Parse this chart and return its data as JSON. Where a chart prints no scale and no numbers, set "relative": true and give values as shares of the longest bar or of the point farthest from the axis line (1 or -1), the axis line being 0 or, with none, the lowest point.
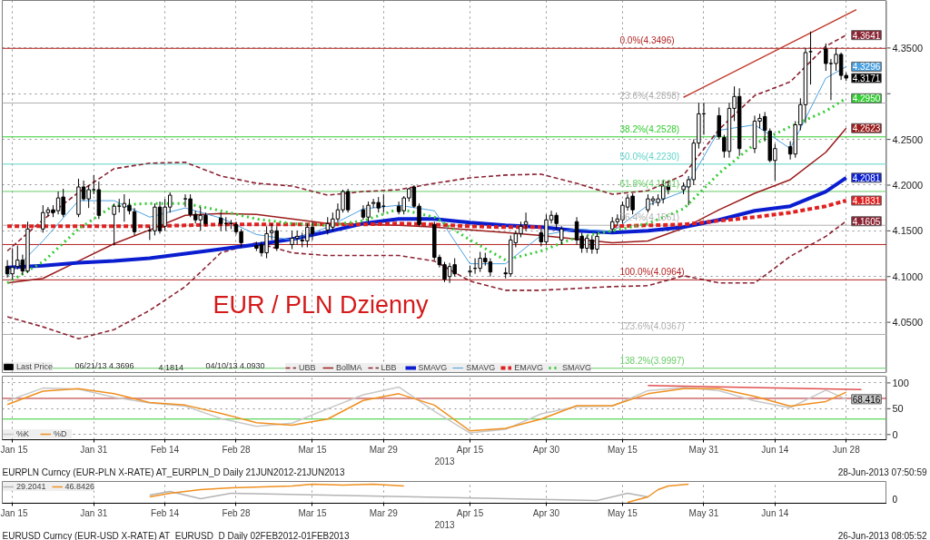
{
  "chart_data": [
    {
      "type": "candlestick",
      "title": "EUR / PLN Dzienny",
      "xlim": [
        "2013-01-13",
        "2013-07-06"
      ],
      "ylim": [
        3.995,
        4.402
      ],
      "xticks": [
        {
          "value": "2013-01-15",
          "label": null
        },
        {
          "value": "2013-01-31",
          "label": null
        },
        {
          "value": "2013-02-14",
          "label": null
        },
        {
          "value": "2013-02-28",
          "label": null
        },
        {
          "value": "2013-03-15",
          "label": null
        },
        {
          "value": "2013-03-29",
          "label": null
        },
        {
          "value": "2013-04-15",
          "label": null
        },
        {
          "value": "2013-04-30",
          "label": null
        },
        {
          "value": "2013-05-15",
          "label": null
        },
        {
          "value": "2013-05-31",
          "label": null
        },
        {
          "value": "2013-06-14",
          "label": null
        },
        {
          "value": "2013-06-28",
          "label": null
        }
      ],
      "yticks": [
        {
          "value": 4.05,
          "label": "4.0500"
        },
        {
          "value": 4.1,
          "label": "4.1000"
        },
        {
          "value": 4.15,
          "label": "4.1500"
        },
        {
          "value": 4.2,
          "label": "4.2000"
        },
        {
          "value": 4.25,
          "label": "4.2500"
        },
        {
          "value": 4.3,
          "label": null
        },
        {
          "value": 4.35,
          "label": "4.3500"
        }
      ],
      "tick_labels": "y",
      "grid": true,
      "legend": "bottom left",
      "annotations": [
        "06/21/13 4.3696",
        "4.1814",
        "04/10/13 4.0930"
      ],
      "ref_lines": [
        {
          "axis": "y",
          "value": 4.3496,
          "label": "0.0%(4.3496)",
          "color": "#b22222"
        },
        {
          "axis": "y",
          "value": 4.2898,
          "label": "23.6%(4.2898)",
          "color": "#b0b0b0"
        },
        {
          "axis": "y",
          "value": 4.2528,
          "label": "38.2%(4.2528)",
          "color": "#33cc33"
        },
        {
          "axis": "y",
          "value": 4.223,
          "label": "50.0%(4.2230)",
          "color": "#5fd3c8"
        },
        {
          "axis": "y",
          "value": 4.1931,
          "label": "61.8%(4.1931)",
          "color": "#66cc66"
        },
        {
          "axis": "y",
          "value": 4.1561,
          "label": "76.4%(4.1561)",
          "color": "#b0b0b0"
        },
        {
          "axis": "y",
          "value": 4.135,
          "color": "#b22222"
        },
        {
          "axis": "y",
          "value": 4.0964,
          "label": "100.0%(4.0964)",
          "color": "#b22222"
        },
        {
          "axis": "y",
          "value": 4.0367,
          "label": "123.6%(4.0367)",
          "color": "#b0b0b0"
        },
        {
          "axis": "y",
          "value": 3.9997,
          "label": "138.2%(3.9997)",
          "color": "#66cc66"
        }
      ],
      "x": [
        "2013-01-14",
        "2013-01-21",
        "2013-01-28",
        "2013-02-04",
        "2013-02-11",
        "2013-02-18",
        "2013-02-25",
        "2013-03-04",
        "2013-03-11",
        "2013-03-18",
        "2013-03-25",
        "2013-04-01",
        "2013-04-08",
        "2013-04-15",
        "2013-04-22",
        "2013-04-29",
        "2013-05-06",
        "2013-05-13",
        "2013-05-20",
        "2013-05-27",
        "2013-06-03",
        "2013-06-10",
        "2013-06-17",
        "2013-06-24",
        "2013-06-28"
      ],
      "series": [
        {
          "name": "Last Price",
          "type": "candlestick",
          "color": "#000000",
          "x": [
            "2013-01-14",
            "2013-01-15",
            "2013-01-16",
            "2013-01-17",
            "2013-01-18",
            "2013-01-21",
            "2013-01-22",
            "2013-01-23",
            "2013-01-24",
            "2013-01-25",
            "2013-01-28",
            "2013-01-29",
            "2013-01-30",
            "2013-01-31",
            "2013-02-01",
            "2013-02-04",
            "2013-02-05",
            "2013-02-06",
            "2013-02-07",
            "2013-02-08",
            "2013-02-11",
            "2013-02-12",
            "2013-02-13",
            "2013-02-14",
            "2013-02-15",
            "2013-02-18",
            "2013-02-19",
            "2013-02-20",
            "2013-02-21",
            "2013-02-22",
            "2013-02-25",
            "2013-02-26",
            "2013-02-27",
            "2013-02-28",
            "2013-03-01",
            "2013-03-04",
            "2013-03-05",
            "2013-03-06",
            "2013-03-07",
            "2013-03-08",
            "2013-03-11",
            "2013-03-12",
            "2013-03-13",
            "2013-03-14",
            "2013-03-15",
            "2013-03-18",
            "2013-03-19",
            "2013-03-20",
            "2013-03-21",
            "2013-03-22",
            "2013-03-25",
            "2013-03-26",
            "2013-03-27",
            "2013-03-28",
            "2013-03-29",
            "2013-04-01",
            "2013-04-02",
            "2013-04-03",
            "2013-04-04",
            "2013-04-05",
            "2013-04-08",
            "2013-04-09",
            "2013-04-10",
            "2013-04-11",
            "2013-04-12",
            "2013-04-15",
            "2013-04-16",
            "2013-04-17",
            "2013-04-18",
            "2013-04-19",
            "2013-04-22",
            "2013-04-23",
            "2013-04-24",
            "2013-04-25",
            "2013-04-26",
            "2013-04-29",
            "2013-04-30",
            "2013-05-01",
            "2013-05-02",
            "2013-05-03",
            "2013-05-06",
            "2013-05-07",
            "2013-05-08",
            "2013-05-09",
            "2013-05-10",
            "2013-05-13",
            "2013-05-14",
            "2013-05-15",
            "2013-05-16",
            "2013-05-17",
            "2013-05-20",
            "2013-05-21",
            "2013-05-22",
            "2013-05-23",
            "2013-05-24",
            "2013-05-27",
            "2013-05-28",
            "2013-05-29",
            "2013-05-30",
            "2013-05-31",
            "2013-06-03",
            "2013-06-04",
            "2013-06-05",
            "2013-06-06",
            "2013-06-07",
            "2013-06-10",
            "2013-06-11",
            "2013-06-12",
            "2013-06-13",
            "2013-06-14",
            "2013-06-17",
            "2013-06-18",
            "2013-06-19",
            "2013-06-20",
            "2013-06-21",
            "2013-06-24",
            "2013-06-25",
            "2013-06-26",
            "2013-06-27",
            "2013-06-28"
          ],
          "ohlc": [
            [
              4.111,
              4.118,
              4.099,
              4.103
            ],
            [
              4.103,
              4.131,
              4.097,
              4.11
            ],
            [
              4.111,
              4.134,
              4.108,
              4.118
            ],
            [
              4.118,
              4.124,
              4.102,
              4.106
            ],
            [
              4.106,
              4.16,
              4.104,
              4.152
            ],
            [
              4.152,
              4.178,
              4.148,
              4.17
            ],
            [
              4.17,
              4.176,
              4.166,
              4.173
            ],
            [
              4.173,
              4.178,
              4.165,
              4.17
            ],
            [
              4.172,
              4.193,
              4.168,
              4.186
            ],
            [
              4.187,
              4.196,
              4.165,
              4.168
            ],
            [
              4.168,
              4.207,
              4.165,
              4.198
            ],
            [
              4.198,
              4.205,
              4.183,
              4.185
            ],
            [
              4.185,
              4.2,
              4.175,
              4.195
            ],
            [
              4.195,
              4.211,
              4.19,
              4.195
            ],
            [
              4.195,
              4.204,
              4.163,
              4.167
            ],
            [
              4.168,
              4.18,
              4.134,
              4.177
            ],
            [
              4.177,
              4.185,
              4.17,
              4.177
            ],
            [
              4.176,
              4.19,
              4.16,
              4.18
            ],
            [
              4.178,
              4.185,
              4.168,
              4.172
            ],
            [
              4.171,
              4.175,
              4.145,
              4.149
            ],
            [
              4.15,
              4.155,
              4.14,
              4.15
            ],
            [
              4.15,
              4.18,
              4.145,
              4.176
            ],
            [
              4.176,
              4.182,
              4.147,
              4.15
            ],
            [
              4.155,
              4.185,
              4.15,
              4.176
            ],
            [
              4.176,
              4.192,
              4.17,
              4.189
            ],
            [
              4.185,
              4.19,
              4.176,
              4.185
            ],
            [
              4.185,
              4.19,
              4.165,
              4.168
            ],
            [
              4.168,
              4.172,
              4.158,
              4.162
            ],
            [
              4.162,
              4.176,
              4.15,
              4.167
            ],
            [
              4.167,
              4.17,
              4.155,
              4.158
            ],
            [
              4.164,
              4.17,
              4.15,
              4.158
            ],
            [
              4.158,
              4.165,
              4.15,
              4.158
            ],
            [
              4.158,
              4.162,
              4.152,
              4.158
            ],
            [
              4.157,
              4.16,
              4.146,
              4.149
            ],
            [
              4.149,
              4.152,
              4.132,
              4.137
            ],
            [
              4.134,
              4.138,
              4.128,
              4.131
            ],
            [
              4.135,
              4.138,
              4.122,
              4.126
            ],
            [
              4.126,
              4.155,
              4.12,
              4.147
            ],
            [
              4.148,
              4.158,
              4.14,
              4.15
            ],
            [
              4.15,
              4.155,
              4.128,
              4.131
            ],
            [
              4.135,
              4.15,
              4.13,
              4.142
            ],
            [
              4.142,
              4.15,
              4.135,
              4.144
            ],
            [
              4.14,
              4.148,
              4.132,
              4.139
            ],
            [
              4.139,
              4.158,
              4.132,
              4.154
            ],
            [
              4.154,
              4.16,
              4.14,
              4.147
            ],
            [
              4.151,
              4.165,
              4.146,
              4.158
            ],
            [
              4.154,
              4.17,
              4.15,
              4.163
            ],
            [
              4.163,
              4.18,
              4.16,
              4.173
            ],
            [
              4.173,
              4.195,
              4.17,
              4.193
            ],
            [
              4.193,
              4.196,
              4.17,
              4.173
            ],
            [
              4.173,
              4.178,
              4.162,
              4.165
            ],
            [
              4.165,
              4.182,
              4.16,
              4.178
            ],
            [
              4.18,
              4.185,
              4.175,
              4.181
            ],
            [
              4.181,
              4.187,
              4.17,
              4.175
            ],
            [
              4.177,
              4.19,
              4.17,
              4.177
            ],
            [
              4.177,
              4.182,
              4.168,
              4.171
            ],
            [
              4.172,
              4.188,
              4.168,
              4.186
            ],
            [
              4.186,
              4.197,
              4.182,
              4.196
            ],
            [
              4.198,
              4.2,
              4.175,
              4.177
            ],
            [
              4.177,
              4.18,
              4.155,
              4.157
            ],
            [
              4.157,
              4.16,
              4.118,
              4.121
            ],
            [
              4.121,
              4.124,
              4.11,
              4.113
            ],
            [
              4.113,
              4.116,
              4.094,
              4.097
            ],
            [
              4.1,
              4.115,
              4.093,
              4.111
            ],
            [
              4.113,
              4.12,
              4.1,
              4.103
            ],
            [
              4.105,
              4.112,
              4.1,
              4.106
            ],
            [
              4.109,
              4.12,
              4.103,
              4.109
            ],
            [
              4.109,
              4.127,
              4.105,
              4.12
            ],
            [
              4.12,
              4.126,
              4.112,
              4.116
            ],
            [
              4.116,
              4.12,
              4.1,
              4.105
            ],
            [
              4.104,
              4.11,
              4.098,
              4.103
            ],
            [
              4.103,
              4.145,
              4.1,
              4.14
            ],
            [
              4.137,
              4.15,
              4.132,
              4.147
            ],
            [
              4.147,
              4.16,
              4.143,
              4.155
            ],
            [
              4.157,
              4.17,
              4.15,
              4.16
            ],
            [
              4.148,
              4.152,
              4.133,
              4.138
            ],
            [
              4.138,
              4.168,
              4.135,
              4.162
            ],
            [
              4.162,
              4.172,
              4.158,
              4.167
            ],
            [
              4.167,
              4.17,
              4.152,
              4.158
            ],
            [
              4.14,
              4.155,
              4.135,
              4.152
            ],
            [
              4.16,
              4.165,
              4.135,
              4.14
            ],
            [
              4.144,
              4.148,
              4.126,
              4.131
            ],
            [
              4.131,
              4.145,
              4.126,
              4.142
            ],
            [
              4.14,
              4.145,
              4.125,
              4.13
            ],
            [
              4.13,
              4.148,
              4.125,
              4.144
            ],
            [
              4.152,
              4.165,
              4.148,
              4.16
            ],
            [
              4.16,
              4.168,
              4.155,
              4.163
            ],
            [
              4.162,
              4.182,
              4.158,
              4.178
            ],
            [
              4.176,
              4.19,
              4.172,
              4.186
            ],
            [
              4.188,
              4.191,
              4.168,
              4.173
            ],
            [
              4.173,
              4.19,
              4.17,
              4.185
            ],
            [
              4.183,
              4.188,
              4.178,
              4.185
            ],
            [
              4.181,
              4.19,
              4.177,
              4.185
            ],
            [
              4.185,
              4.206,
              4.18,
              4.199
            ],
            [
              4.199,
              4.204,
              4.19,
              4.195
            ],
            [
              4.195,
              4.203,
              4.19,
              4.199
            ],
            [
              4.198,
              4.21,
              4.178,
              4.206
            ],
            [
              4.206,
              4.25,
              4.2,
              4.246
            ],
            [
              4.246,
              4.29,
              4.24,
              4.278
            ],
            [
              4.278,
              4.29,
              4.255,
              4.278
            ],
            [
              4.276,
              4.285,
              4.25,
              4.253
            ],
            [
              4.252,
              4.255,
              4.23,
              4.237
            ],
            [
              4.237,
              4.29,
              4.23,
              4.284
            ],
            [
              4.284,
              4.308,
              4.27,
              4.297
            ],
            [
              4.297,
              4.306,
              4.232,
              4.24
            ],
            [
              4.24,
              4.276,
              4.235,
              4.27
            ],
            [
              4.27,
              4.278,
              4.262,
              4.273
            ],
            [
              4.275,
              4.28,
              4.248,
              4.26
            ],
            [
              4.259,
              4.262,
              4.225,
              4.227
            ],
            [
              4.227,
              4.245,
              4.205,
              4.24
            ],
            [
              4.242,
              4.248,
              4.228,
              4.234
            ],
            [
              4.234,
              4.27,
              4.23,
              4.266
            ],
            [
              4.266,
              4.295,
              4.26,
              4.288
            ],
            [
              4.288,
              4.35,
              4.268,
              4.345
            ],
            [
              4.346,
              4.368,
              4.31,
              4.346
            ],
            [
              4.349,
              4.355,
              4.325,
              4.333
            ],
            [
              4.333,
              4.338,
              4.293,
              4.333
            ],
            [
              4.333,
              4.35,
              4.325,
              4.343
            ],
            [
              4.343,
              4.345,
              4.315,
              4.32
            ],
            [
              4.32,
              4.323,
              4.314,
              4.3171
            ]
          ],
          "value_labels": [
            null,
            null,
            null,
            null,
            null,
            null,
            null,
            null,
            null,
            null,
            null,
            null,
            null,
            null,
            null,
            null,
            null,
            null,
            null,
            null,
            null,
            null,
            null,
            null,
            null,
            null,
            null,
            null,
            null,
            null,
            null,
            null,
            null,
            null,
            null,
            null,
            null,
            null,
            null,
            null,
            null,
            null,
            null,
            null,
            null,
            null,
            null,
            null,
            null,
            null,
            null,
            null,
            null,
            null,
            null,
            null,
            null,
            null,
            null,
            null,
            null,
            null,
            null,
            null,
            null,
            null,
            null,
            null,
            null,
            null,
            null,
            null,
            null,
            null,
            null,
            null,
            null,
            null,
            null,
            null,
            null,
            null,
            null,
            null,
            null,
            null,
            null,
            null,
            null,
            null,
            null,
            null,
            null,
            null,
            null,
            null,
            null,
            null,
            null,
            null,
            null,
            null,
            null,
            null,
            null,
            null,
            null,
            null,
            null,
            null,
            null,
            null,
            null,
            null,
            null,
            null,
            null,
            null,
            null,
            "4.3171"
          ]
        },
        {
          "name": "UBB",
          "type": "line",
          "color": "#8b2332",
          "line_style": "dashed",
          "values": [
            4.128,
            4.162,
            4.192,
            4.218,
            4.224,
            4.225,
            4.21,
            4.202,
            4.199,
            4.189,
            4.193,
            4.195,
            4.202,
            4.208,
            4.211,
            4.212,
            4.202,
            4.19,
            4.194,
            4.211,
            4.261,
            4.298,
            4.313,
            4.352,
            4.3641
          ],
          "value_labels": [
            null,
            null,
            null,
            null,
            null,
            null,
            null,
            null,
            null,
            null,
            null,
            null,
            null,
            null,
            null,
            null,
            null,
            null,
            null,
            null,
            null,
            null,
            null,
            null,
            "4.3641"
          ]
        },
        {
          "name": "BollMA",
          "type": "line",
          "color": "#9b1b1b",
          "line_style": "solid",
          "values": [
            4.093,
            4.098,
            4.117,
            4.136,
            4.151,
            4.167,
            4.169,
            4.168,
            4.163,
            4.158,
            4.157,
            4.156,
            4.154,
            4.151,
            4.148,
            4.145,
            4.141,
            4.137,
            4.139,
            4.153,
            4.173,
            4.191,
            4.206,
            4.236,
            4.2623
          ],
          "value_labels": [
            null,
            null,
            null,
            null,
            null,
            null,
            null,
            null,
            null,
            null,
            null,
            null,
            null,
            null,
            null,
            null,
            null,
            null,
            null,
            null,
            null,
            null,
            null,
            null,
            "4.2623"
          ]
        },
        {
          "name": "LBB",
          "type": "line",
          "color": "#8b2332",
          "line_style": "dashed",
          "values": [
            4.056,
            4.045,
            4.032,
            4.042,
            4.063,
            4.089,
            4.126,
            4.137,
            4.126,
            4.123,
            4.123,
            4.123,
            4.117,
            4.095,
            4.085,
            4.085,
            4.087,
            4.089,
            4.09,
            4.101,
            4.093,
            4.093,
            4.122,
            4.144,
            4.1605
          ],
          "value_labels": [
            null,
            null,
            null,
            null,
            null,
            null,
            null,
            null,
            null,
            null,
            null,
            null,
            null,
            null,
            null,
            null,
            null,
            null,
            null,
            null,
            null,
            null,
            null,
            null,
            "4.1605"
          ]
        },
        {
          "name": "SMAVG",
          "type": "line",
          "color": "#0a1ed0",
          "line_style": "solid",
          "values": [
            4.11,
            4.112,
            4.115,
            4.117,
            4.12,
            4.125,
            4.13,
            4.135,
            4.141,
            4.149,
            4.158,
            4.163,
            4.163,
            4.159,
            4.156,
            4.154,
            4.15,
            4.148,
            4.15,
            4.154,
            4.162,
            4.172,
            4.177,
            4.193,
            4.2081
          ],
          "value_labels": [
            null,
            null,
            null,
            null,
            null,
            null,
            null,
            null,
            null,
            null,
            null,
            null,
            null,
            null,
            null,
            null,
            null,
            null,
            null,
            null,
            null,
            null,
            null,
            null,
            "4.2081"
          ]
        },
        {
          "name": "SMAVG",
          "type": "line",
          "color": "#4aa0e0",
          "line_style": "solid",
          "values": [
            4.1,
            4.139,
            4.183,
            4.183,
            4.165,
            4.175,
            4.164,
            4.146,
            4.14,
            4.154,
            4.174,
            4.178,
            4.172,
            4.114,
            4.114,
            4.145,
            4.152,
            4.149,
            4.178,
            4.193,
            4.26,
            4.266,
            4.24,
            4.317,
            4.3296
          ],
          "value_labels": [
            null,
            null,
            null,
            null,
            null,
            null,
            null,
            null,
            null,
            null,
            null,
            null,
            null,
            null,
            null,
            null,
            null,
            null,
            null,
            null,
            null,
            null,
            null,
            null,
            "4.3296"
          ]
        },
        {
          "name": "EMAVG",
          "type": "line",
          "color": "#e02020",
          "line_style": "dashed",
          "values": [
            4.155,
            4.155,
            4.155,
            4.155,
            4.155,
            4.156,
            4.157,
            4.157,
            4.157,
            4.157,
            4.157,
            4.158,
            4.157,
            4.155,
            4.154,
            4.154,
            null,
            4.155,
            4.156,
            4.157,
            4.161,
            4.165,
            4.17,
            4.177,
            4.1831
          ],
          "value_labels": [
            null,
            null,
            null,
            null,
            null,
            null,
            null,
            null,
            null,
            null,
            null,
            null,
            null,
            null,
            null,
            null,
            null,
            null,
            null,
            null,
            null,
            null,
            null,
            null,
            "4.1831"
          ]
        },
        {
          "name": "SMAVG",
          "type": "line",
          "color": "#33cc33",
          "line_style": "dotted",
          "values": [
            4.093,
            4.116,
            4.152,
            4.178,
            4.18,
            4.18,
            4.172,
            4.163,
            4.158,
            4.156,
            4.161,
            4.174,
            4.165,
            4.14,
            4.118,
            4.128,
            4.143,
            4.15,
            4.158,
            4.174,
            4.213,
            4.245,
            4.264,
            4.281,
            4.295
          ],
          "value_labels": [
            null,
            null,
            null,
            null,
            null,
            null,
            null,
            null,
            null,
            null,
            null,
            null,
            null,
            null,
            null,
            null,
            null,
            null,
            null,
            null,
            null,
            null,
            null,
            null,
            "4.2950"
          ]
        },
        {
          "type": "line",
          "color": "#c0392b",
          "line_style": "solid",
          "x": [
            "2013-05-27",
            "2013-06-30"
          ],
          "values": [
            4.296,
            4.392
          ]
        }
      ]
    },
    {
      "type": "line",
      "xlabel": "2013",
      "xlim": [
        "2013-01-13",
        "2013-07-06"
      ],
      "ylim": [
        -10,
        113
      ],
      "xticks": [
        {
          "value": "2013-01-15",
          "label": "Jan 15"
        },
        {
          "value": "2013-01-31",
          "label": "Jan 31"
        },
        {
          "value": "2013-02-14",
          "label": "Feb 14"
        },
        {
          "value": "2013-02-28",
          "label": "Feb 28"
        },
        {
          "value": "2013-03-15",
          "label": "Mar 15"
        },
        {
          "value": "2013-03-29",
          "label": "Mar 29"
        },
        {
          "value": "2013-04-15",
          "label": "Apr 15"
        },
        {
          "value": "2013-04-30",
          "label": "Apr 30"
        },
        {
          "value": "2013-05-15",
          "label": "May 15"
        },
        {
          "value": "2013-05-31",
          "label": "May 31"
        },
        {
          "value": "2013-06-14",
          "label": "Jun 14"
        },
        {
          "value": "2013-06-28",
          "label": "Jun 28"
        }
      ],
      "yticks": [
        0,
        50,
        100
      ],
      "grid": true,
      "legend": "bottom left",
      "annotations": [
        "EURPLN Curncy (EUR-PLN X-RATE) AT_EURPLN_D  Daily 21JUN2012-21JUN2013",
        "28-Jun-2013 07:50:59"
      ],
      "ref_lines": [
        {
          "axis": "y",
          "value": 70,
          "color": "#b22222"
        },
        {
          "axis": "y",
          "value": 30,
          "color": "#33cc33"
        }
      ],
      "x": [
        "2013-01-14",
        "2013-01-21",
        "2013-01-28",
        "2013-02-04",
        "2013-02-11",
        "2013-02-18",
        "2013-02-25",
        "2013-03-04",
        "2013-03-11",
        "2013-03-18",
        "2013-03-25",
        "2013-04-01",
        "2013-04-08",
        "2013-04-15",
        "2013-04-22",
        "2013-04-29",
        "2013-05-06",
        "2013-05-13",
        "2013-05-20",
        "2013-05-27",
        "2013-06-03",
        "2013-06-10",
        "2013-06-17",
        "2013-06-24",
        "2013-06-28"
      ],
      "series": [
        {
          "name": "%K",
          "color": "#c8c8c8",
          "values": [
            65,
            90,
            88,
            72,
            61,
            55,
            31,
            16,
            22,
            50,
            77,
            92,
            45,
            3,
            10,
            40,
            54,
            55,
            85,
            91,
            85,
            65,
            52,
            86,
            68.416
          ],
          "value_labels": [
            null,
            null,
            null,
            null,
            null,
            null,
            null,
            null,
            null,
            null,
            null,
            null,
            null,
            null,
            null,
            null,
            null,
            null,
            null,
            null,
            null,
            null,
            null,
            null,
            "68.416"
          ]
        },
        {
          "name": "%D",
          "color": "#f09020",
          "values": [
            58,
            84,
            89,
            79,
            62,
            57,
            41,
            23,
            18,
            30,
            66,
            79,
            57,
            7,
            12,
            30,
            56,
            56,
            79,
            89,
            89,
            74,
            55,
            64,
            82
          ]
        },
        {
          "color": "#e05050",
          "x": [
            "2013-05-20",
            "2013-07-01"
          ],
          "values": [
            95,
            87
          ]
        }
      ]
    },
    {
      "type": "line",
      "relative": true,
      "xlabel": "2013",
      "xlim": [
        "2013-01-13",
        "2013-07-06"
      ],
      "xticks": [
        {
          "value": "2013-01-15",
          "label": "Jan 15"
        },
        {
          "value": "2013-01-31",
          "label": "Jan 31"
        },
        {
          "value": "2013-02-14",
          "label": "Feb 14"
        },
        {
          "value": "2013-02-28",
          "label": "Feb 28"
        },
        {
          "value": "2013-03-15",
          "label": "Mar 15"
        },
        {
          "value": "2013-03-29",
          "label": "Mar 29"
        },
        {
          "value": "2013-04-15",
          "label": "Apr 15"
        },
        {
          "value": "2013-04-30",
          "label": "Apr 30"
        },
        {
          "value": "2013-05-15",
          "label": "May 15"
        },
        {
          "value": "2013-05-31",
          "label": "May 31"
        },
        {
          "value": "2013-06-14",
          "label": "Jun 14"
        }
      ],
      "tick_labels": "x",
      "grid": "x",
      "legend": "top left",
      "annotations": [
        "0",
        "EURUSD Curncy (EUR-USD X-RATE) AT_EURUSD_D  Daily 02FEB2012-01FEB2013",
        "26-Jun-2013 08:05:52"
      ],
      "series": [
        {
          "name": "29.2041",
          "color": "#b4b4b4",
          "x": [
            "2013-02-11",
            "2013-02-15",
            "2013-02-21",
            "2013-02-27",
            "2013-05-10",
            "2013-05-16",
            "2013-05-20"
          ],
          "values": [
            0.4,
            0.6,
            0.2,
            0.5,
            0.1,
            0.5,
            0.3
          ]
        },
        {
          "name": "46.8426",
          "color": "#f09020",
          "x": [
            "2013-02-11",
            "2013-02-15",
            "2013-02-21",
            "2013-02-27",
            "2013-03-05",
            "2013-03-11",
            "2013-03-15",
            "2013-03-21",
            "2013-03-27",
            "2013-04-02",
            "2013-04-08",
            "2013-05-16",
            "2013-05-20",
            "2013-05-22",
            "2013-05-24",
            "2013-05-28"
          ],
          "values": [
            0.3,
            0.5,
            0.7,
            0.8,
            0.85,
            0.9,
            1.0,
            0.95,
            1.0,
            0.9,
            null,
            0.0,
            0.3,
            0.7,
            0.9,
            1.0
          ]
        }
      ]
    }
  ]
}
